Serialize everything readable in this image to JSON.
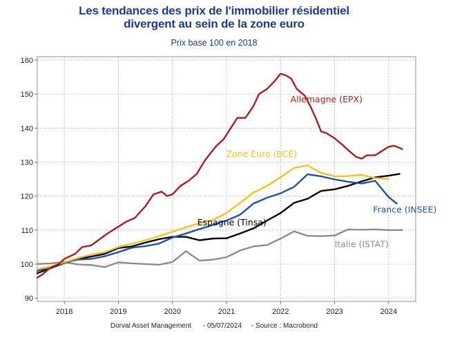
{
  "chart_data": {
    "type": "line",
    "title_line1": "Les tendances des prix de l'immobilier résidentiel",
    "title_line2": "divergent au sein de la zone euro",
    "subtitle": "Prix base 100 en 2018",
    "footer": {
      "left": "Dorval Asset Management",
      "date": "- 05/07/2024",
      "source": "- Source : Macrobond"
    },
    "xlim": [
      2017.5,
      2024.5
    ],
    "ylim": [
      89,
      161
    ],
    "x_ticks": [
      {
        "value": 2018,
        "label": "2018"
      },
      {
        "value": 2019,
        "label": "2019"
      },
      {
        "value": 2020,
        "label": "2020"
      },
      {
        "value": 2021,
        "label": "2021"
      },
      {
        "value": 2022,
        "label": "2022"
      },
      {
        "value": 2023,
        "label": "2023"
      },
      {
        "value": 2024,
        "label": "2024"
      }
    ],
    "y_ticks": [
      {
        "value": 90,
        "label": "90"
      },
      {
        "value": 100,
        "label": "100"
      },
      {
        "value": 110,
        "label": "110"
      },
      {
        "value": 120,
        "label": "120"
      },
      {
        "value": 130,
        "label": "130"
      },
      {
        "value": 140,
        "label": "140"
      },
      {
        "value": 150,
        "label": "150"
      },
      {
        "value": 160,
        "label": "160"
      }
    ],
    "grid": true,
    "series": [
      {
        "name": "Italie (ISTAT)",
        "label": "Italie (ISTAT)",
        "color": "#8c8c8c",
        "points": [
          [
            2017.5,
            100.0
          ],
          [
            2017.75,
            100.2
          ],
          [
            2018.0,
            100.6
          ],
          [
            2018.25,
            99.9
          ],
          [
            2018.5,
            99.7
          ],
          [
            2018.75,
            99.1
          ],
          [
            2019.0,
            100.5
          ],
          [
            2019.25,
            100.2
          ],
          [
            2019.5,
            100.0
          ],
          [
            2019.75,
            99.8
          ],
          [
            2020.0,
            100.6
          ],
          [
            2020.25,
            103.8
          ],
          [
            2020.5,
            101.0
          ],
          [
            2020.75,
            101.3
          ],
          [
            2021.0,
            102.0
          ],
          [
            2021.25,
            104.0
          ],
          [
            2021.5,
            105.2
          ],
          [
            2021.75,
            105.6
          ],
          [
            2022.0,
            107.5
          ],
          [
            2022.25,
            109.6
          ],
          [
            2022.5,
            108.3
          ],
          [
            2022.75,
            108.2
          ],
          [
            2023.0,
            108.4
          ],
          [
            2023.25,
            110.2
          ],
          [
            2023.5,
            110.1
          ],
          [
            2023.75,
            110.2
          ],
          [
            2024.0,
            110.0
          ],
          [
            2024.25,
            110.0
          ]
        ],
        "label_value": [
          2023.5,
          105.0
        ]
      },
      {
        "name": "Espagne (Tinsa)",
        "label": "Espagne (Tinsa)",
        "color": "#000000",
        "points": [
          [
            2017.5,
            97.3
          ],
          [
            2017.75,
            98.8
          ],
          [
            2018.0,
            100.3
          ],
          [
            2018.25,
            101.5
          ],
          [
            2018.5,
            102.2
          ],
          [
            2018.75,
            103.0
          ],
          [
            2019.0,
            104.7
          ],
          [
            2019.25,
            105.2
          ],
          [
            2019.5,
            106.3
          ],
          [
            2019.75,
            107.3
          ],
          [
            2020.0,
            108.0
          ],
          [
            2020.25,
            108.0
          ],
          [
            2020.5,
            107.0
          ],
          [
            2020.75,
            107.5
          ],
          [
            2021.0,
            107.6
          ],
          [
            2021.25,
            109.0
          ],
          [
            2021.5,
            110.5
          ],
          [
            2021.75,
            112.8
          ],
          [
            2022.0,
            115.0
          ],
          [
            2022.25,
            118.0
          ],
          [
            2022.5,
            119.2
          ],
          [
            2022.75,
            121.5
          ],
          [
            2023.0,
            122.0
          ],
          [
            2023.25,
            123.0
          ],
          [
            2023.5,
            124.3
          ],
          [
            2023.75,
            125.5
          ],
          [
            2024.0,
            126.0
          ],
          [
            2024.2,
            126.5
          ]
        ],
        "label_value": [
          2021.1,
          111.4
        ]
      },
      {
        "name": "France (INSEE)",
        "label": "France (INSEE)",
        "color": "#1f4fb4",
        "points": [
          [
            2017.5,
            98.0
          ],
          [
            2017.75,
            99.0
          ],
          [
            2018.0,
            100.5
          ],
          [
            2018.25,
            101.3
          ],
          [
            2018.5,
            101.5
          ],
          [
            2018.75,
            102.3
          ],
          [
            2019.0,
            103.5
          ],
          [
            2019.25,
            104.8
          ],
          [
            2019.5,
            105.3
          ],
          [
            2019.75,
            106.0
          ],
          [
            2020.0,
            107.8
          ],
          [
            2020.25,
            109.0
          ],
          [
            2020.5,
            110.3
          ],
          [
            2020.75,
            111.5
          ],
          [
            2021.0,
            112.8
          ],
          [
            2021.25,
            114.5
          ],
          [
            2021.5,
            117.8
          ],
          [
            2021.75,
            119.5
          ],
          [
            2022.0,
            120.8
          ],
          [
            2022.25,
            122.7
          ],
          [
            2022.5,
            126.4
          ],
          [
            2022.75,
            125.8
          ],
          [
            2023.0,
            124.9
          ],
          [
            2023.25,
            124.2
          ],
          [
            2023.5,
            123.7
          ],
          [
            2023.75,
            124.5
          ],
          [
            2024.0,
            119.7
          ],
          [
            2024.15,
            117.8
          ]
        ],
        "label_value": [
          2024.3,
          115.1
        ]
      },
      {
        "name": "Zone Euro (BCE)",
        "label": "Zone Euro (BCE)",
        "color": "#f0c419",
        "points": [
          [
            2017.5,
            98.5
          ],
          [
            2017.75,
            99.3
          ],
          [
            2018.0,
            100.5
          ],
          [
            2018.25,
            101.8
          ],
          [
            2018.5,
            102.8
          ],
          [
            2018.75,
            103.5
          ],
          [
            2019.0,
            105.0
          ],
          [
            2019.25,
            106.0
          ],
          [
            2019.5,
            107.0
          ],
          [
            2019.75,
            108.2
          ],
          [
            2020.0,
            109.5
          ],
          [
            2020.25,
            110.8
          ],
          [
            2020.5,
            112.0
          ],
          [
            2020.75,
            113.0
          ],
          [
            2021.0,
            115.0
          ],
          [
            2021.25,
            118.0
          ],
          [
            2021.5,
            121.0
          ],
          [
            2021.75,
            123.0
          ],
          [
            2022.0,
            125.5
          ],
          [
            2022.25,
            128.3
          ],
          [
            2022.5,
            129.0
          ],
          [
            2022.75,
            126.8
          ],
          [
            2023.0,
            125.8
          ],
          [
            2023.25,
            125.9
          ],
          [
            2023.5,
            126.2
          ],
          [
            2023.75,
            125.3
          ],
          [
            2024.0,
            125.0
          ]
        ],
        "label_value": [
          2021.65,
          131.5
        ]
      },
      {
        "name": "Allemagne (EPX)",
        "label": "Allemagne (EPX)",
        "color": "#b01c1c",
        "points": [
          [
            2017.5,
            96.0
          ],
          [
            2017.6,
            97.0
          ],
          [
            2017.75,
            99.0
          ],
          [
            2017.9,
            100.0
          ],
          [
            2018.0,
            101.5
          ],
          [
            2018.2,
            103.0
          ],
          [
            2018.33,
            105.0
          ],
          [
            2018.5,
            105.5
          ],
          [
            2018.67,
            107.5
          ],
          [
            2018.8,
            109.0
          ],
          [
            2019.0,
            111.0
          ],
          [
            2019.15,
            112.5
          ],
          [
            2019.3,
            113.5
          ],
          [
            2019.5,
            117.0
          ],
          [
            2019.65,
            120.5
          ],
          [
            2019.8,
            121.3
          ],
          [
            2019.9,
            120.0
          ],
          [
            2020.0,
            120.5
          ],
          [
            2020.15,
            123.0
          ],
          [
            2020.3,
            124.5
          ],
          [
            2020.45,
            126.5
          ],
          [
            2020.6,
            130.5
          ],
          [
            2020.8,
            134.5
          ],
          [
            2020.95,
            136.8
          ],
          [
            2021.1,
            140.5
          ],
          [
            2021.2,
            143.0
          ],
          [
            2021.35,
            143.0
          ],
          [
            2021.5,
            146.5
          ],
          [
            2021.6,
            150.0
          ],
          [
            2021.75,
            151.5
          ],
          [
            2021.9,
            154.0
          ],
          [
            2022.0,
            156.0
          ],
          [
            2022.1,
            155.5
          ],
          [
            2022.2,
            154.5
          ],
          [
            2022.3,
            151.5
          ],
          [
            2022.45,
            149.5
          ],
          [
            2022.55,
            146.5
          ],
          [
            2022.65,
            143.0
          ],
          [
            2022.75,
            139.0
          ],
          [
            2022.85,
            138.5
          ],
          [
            2023.0,
            137.0
          ],
          [
            2023.15,
            135.0
          ],
          [
            2023.25,
            133.5
          ],
          [
            2023.4,
            131.5
          ],
          [
            2023.5,
            131.0
          ],
          [
            2023.6,
            132.0
          ],
          [
            2023.75,
            132.0
          ],
          [
            2023.9,
            133.5
          ],
          [
            2024.0,
            134.5
          ],
          [
            2024.1,
            134.8
          ],
          [
            2024.2,
            134.2
          ],
          [
            2024.25,
            133.8
          ]
        ],
        "label_value": [
          2022.85,
          147.6
        ]
      }
    ]
  }
}
